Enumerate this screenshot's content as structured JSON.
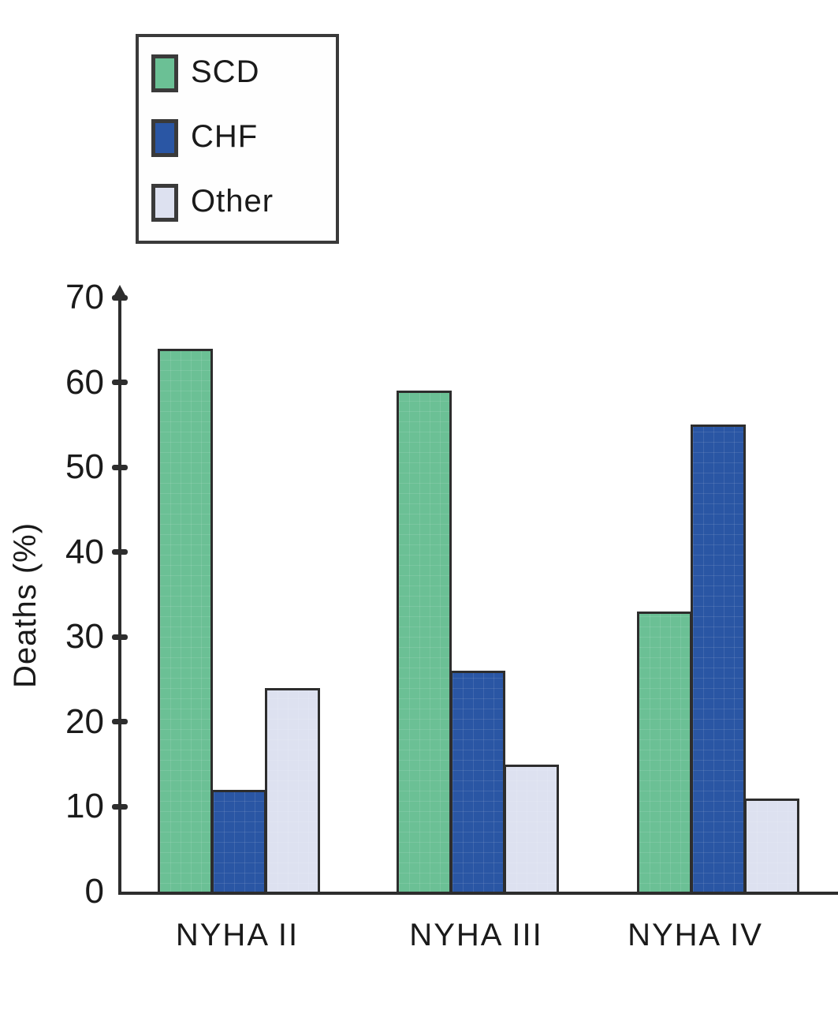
{
  "chart_data": {
    "type": "bar",
    "categories": [
      "NYHA II",
      "NYHA III",
      "NYHA IV"
    ],
    "series": [
      {
        "name": "SCD",
        "color": "#6bc095",
        "values": [
          64,
          59,
          33
        ]
      },
      {
        "name": "CHF",
        "color": "#2a56a4",
        "values": [
          12,
          26,
          55
        ]
      },
      {
        "name": "Other",
        "color": "#dde1f0",
        "values": [
          24,
          15,
          11
        ]
      }
    ],
    "title": "",
    "xlabel": "",
    "ylabel": "Deaths (%)",
    "ylim": [
      0,
      70
    ],
    "yticks": [
      0,
      10,
      20,
      30,
      40,
      50,
      60,
      70
    ],
    "grid": false,
    "legend_position": "top-left",
    "axis_color": "#2d2d2d",
    "bar_border_color": "#2d2d2d"
  }
}
